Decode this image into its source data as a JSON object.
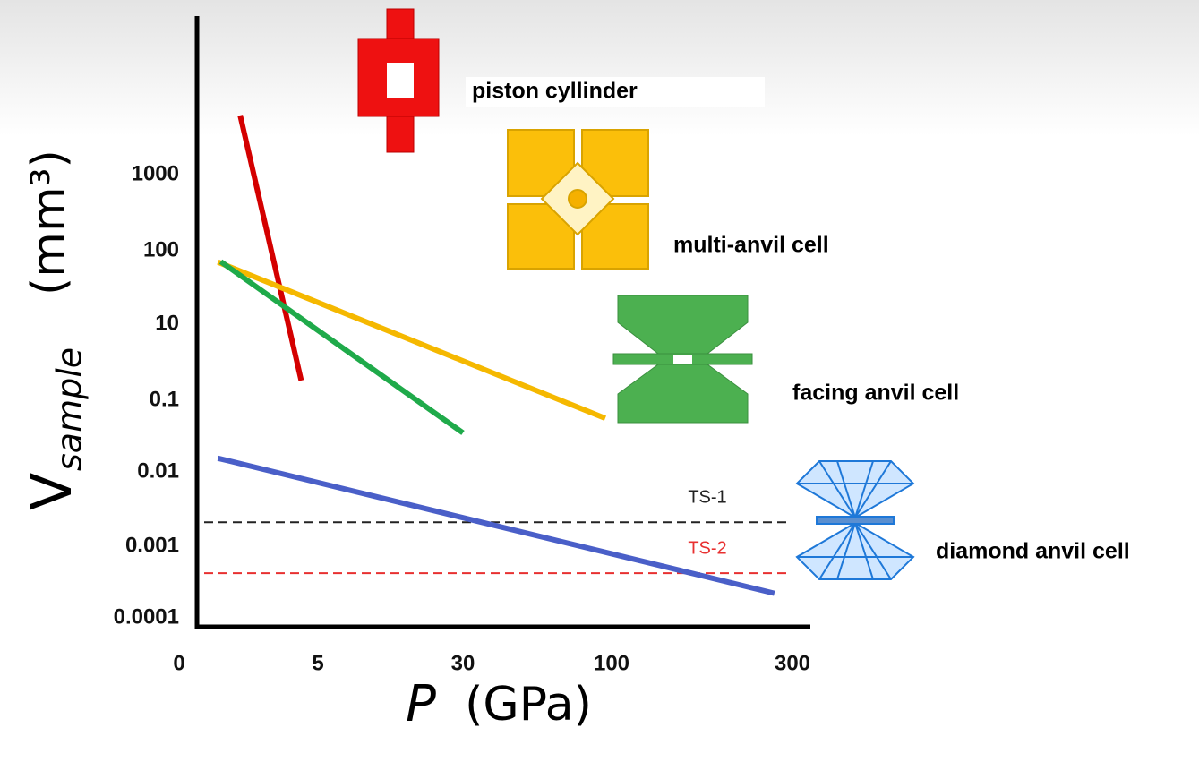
{
  "chart_data": {
    "type": "line",
    "x_label": "P",
    "x_label_unit": "(GPa)",
    "y_label": "V",
    "y_label_sub": "sample",
    "y_label_unit": "(mm³)",
    "log_y": true,
    "xticks": [
      0,
      5,
      30,
      100,
      300
    ],
    "yticks": [
      1000,
      100,
      10,
      0.1,
      0.01,
      0.001,
      0.0001
    ],
    "series": [
      {
        "name": "piston cyllinder",
        "color": "#d40000",
        "x": [
          2.2,
          4.4
        ],
        "values": [
          6000,
          0.33
        ]
      },
      {
        "name": "multi-anvil cell",
        "color": "#f5b800",
        "x": [
          1.4,
          97
        ],
        "values": [
          70,
          0.056
        ]
      },
      {
        "name": "facing anvil cell",
        "color": "#1faa4a",
        "x": [
          1.5,
          30
        ],
        "values": [
          71,
          0.035
        ]
      },
      {
        "name": "diamond anvil cell",
        "color": "#4a5fc8",
        "x": [
          1.4,
          280
        ],
        "values": [
          0.0155,
          0.00022
        ]
      }
    ],
    "reference_lines": [
      {
        "name": "TS-1",
        "color": "#222222",
        "value": 0.0021
      },
      {
        "name": "TS-2",
        "color": "#e83030",
        "value": 0.00042
      }
    ]
  }
}
